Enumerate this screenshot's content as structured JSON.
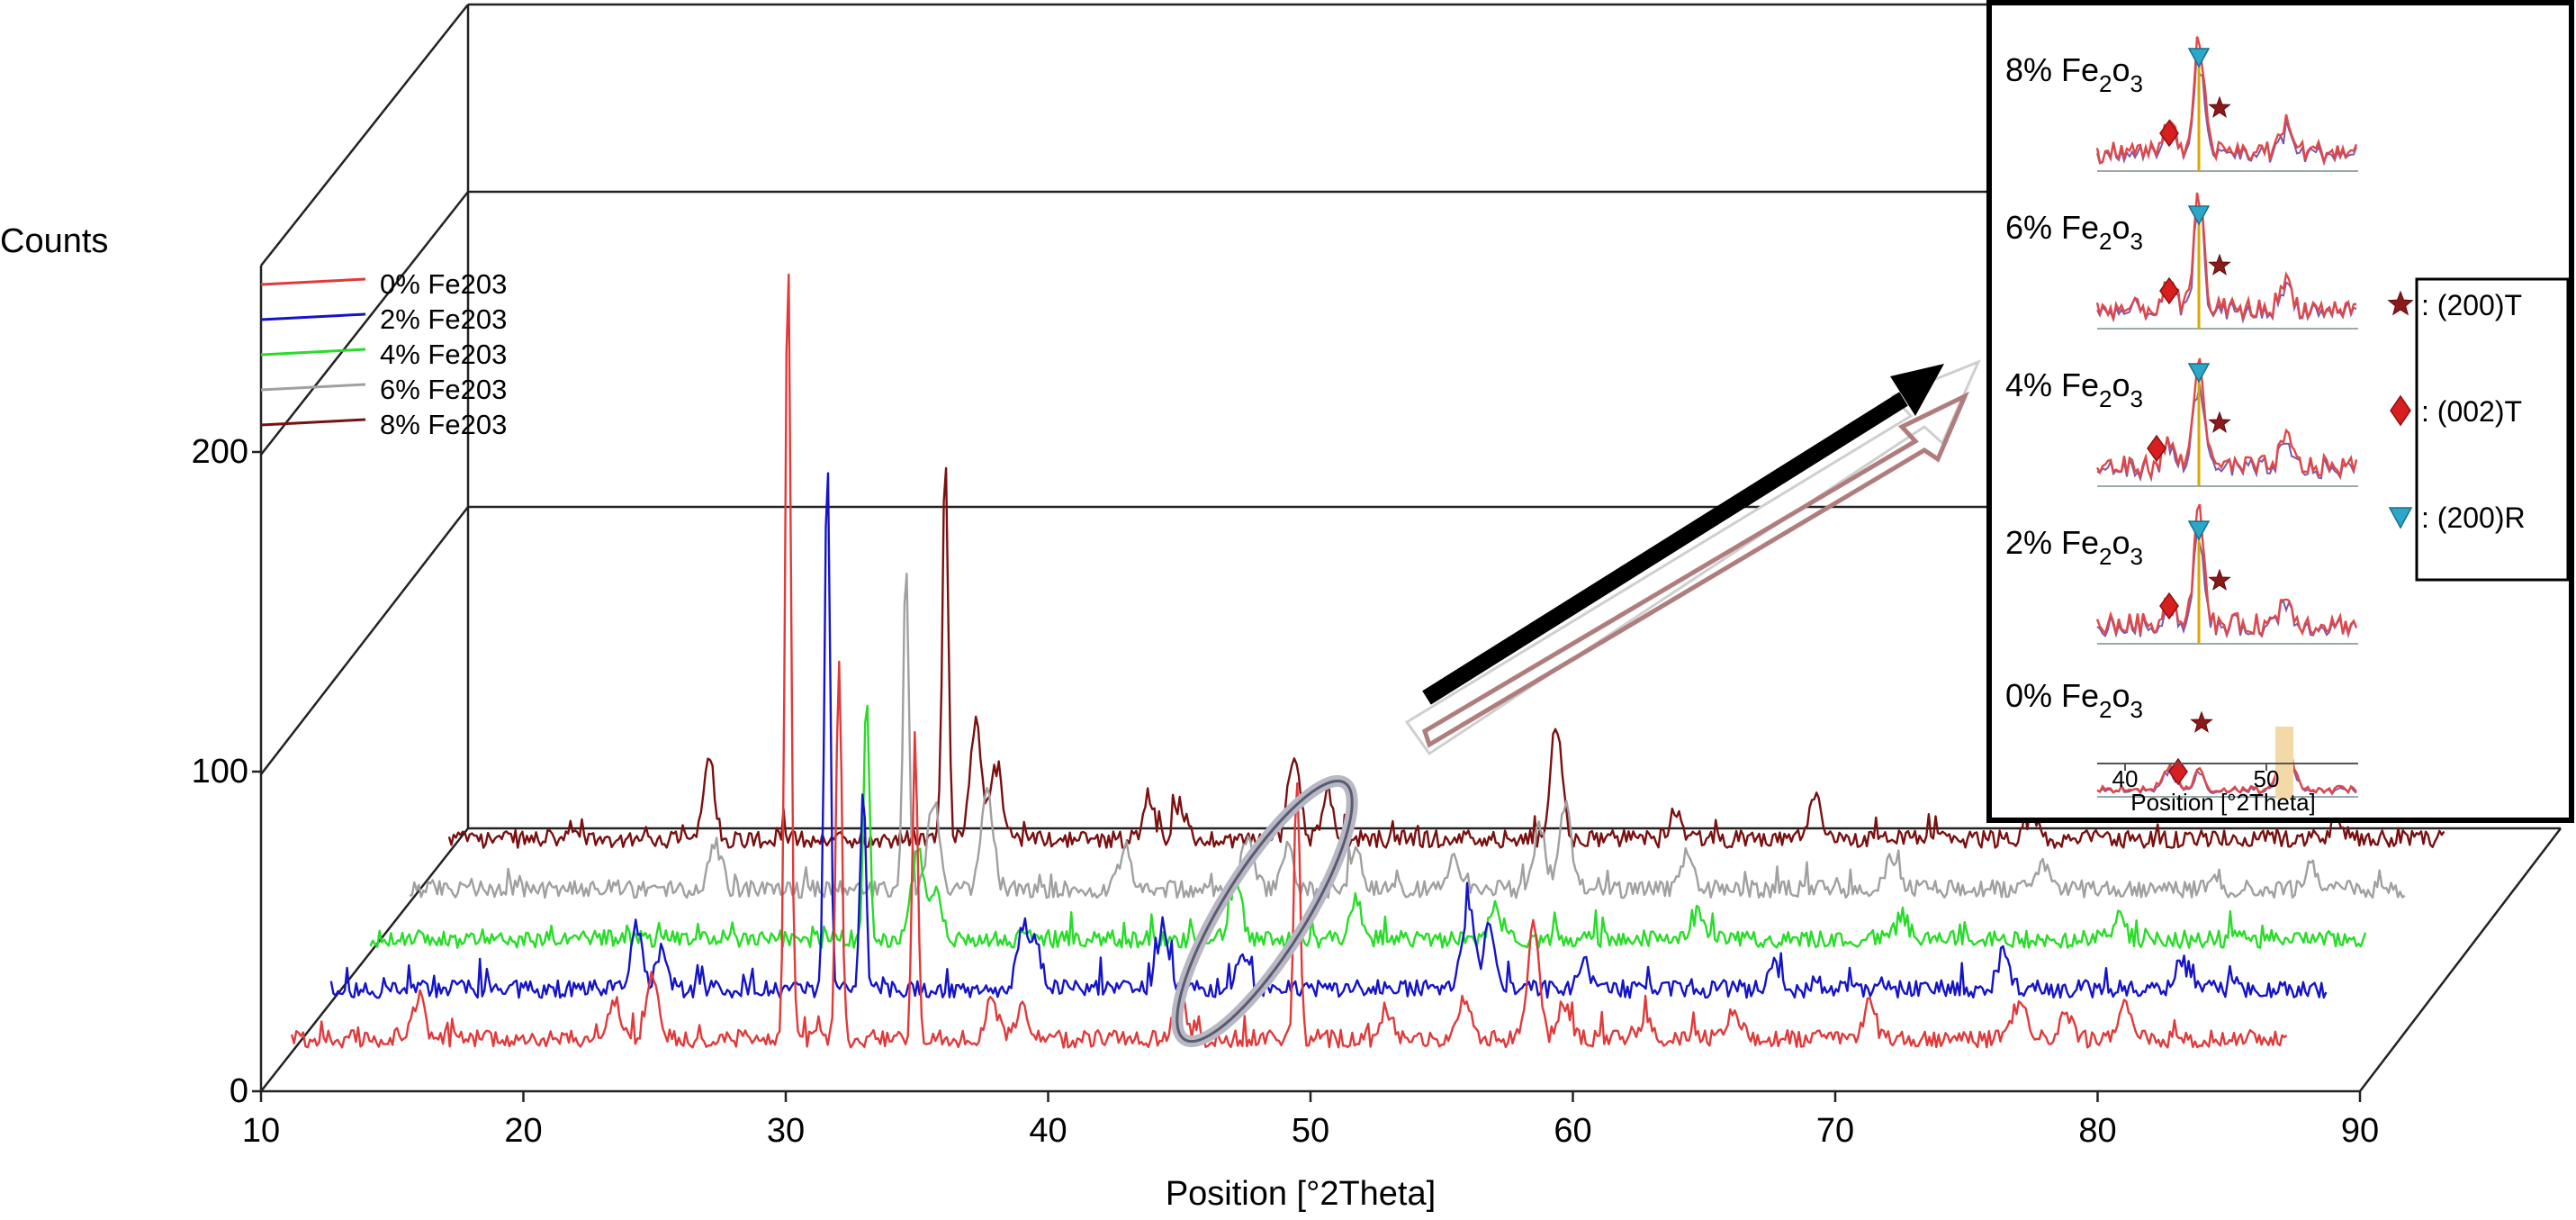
{
  "chart_data": {
    "type": "line",
    "ylabel": "Counts",
    "xlabel": "Position [°2Theta]",
    "xlim": [
      10,
      90
    ],
    "ylim": [
      0,
      260
    ],
    "x_ticks": [
      "10",
      "20",
      "30",
      "40",
      "50",
      "60",
      "70",
      "80",
      "90"
    ],
    "y_ticks": [
      "0",
      "100",
      "200"
    ],
    "grid": false,
    "legend_position": "top-left",
    "colors": {
      "0% Fe203": "#e03a3a",
      "2% Fe203": "#1414c8",
      "4% Fe203": "#28dc28",
      "6% Fe203": "#a0a0a0",
      "8% Fe203": "#7a1010"
    },
    "series": [
      {
        "name": "0% Fe203",
        "baseline": 18,
        "peaks": [
          [
            15.8,
            14
          ],
          [
            23.5,
            12
          ],
          [
            25.0,
            22
          ],
          [
            30.3,
            270
          ],
          [
            32.3,
            130
          ],
          [
            35.3,
            98
          ],
          [
            38.3,
            14
          ],
          [
            39.5,
            10
          ],
          [
            45.7,
            16
          ],
          [
            50.3,
            90
          ],
          [
            53.8,
            10
          ],
          [
            56.9,
            14
          ],
          [
            59.6,
            40
          ],
          [
            60.8,
            12
          ],
          [
            64.0,
            8
          ],
          [
            67.5,
            10
          ],
          [
            72.8,
            12
          ],
          [
            78.8,
            14
          ],
          [
            80.5,
            10
          ],
          [
            82.8,
            12
          ]
        ]
      },
      {
        "name": "2% Fe203",
        "baseline": 33,
        "peaks": [
          [
            22.8,
            22
          ],
          [
            23.8,
            14
          ],
          [
            30.3,
            180
          ],
          [
            31.7,
            70
          ],
          [
            38.0,
            20
          ],
          [
            38.5,
            14
          ],
          [
            43.5,
            22
          ],
          [
            46.6,
            12
          ],
          [
            55.5,
            28
          ],
          [
            56.3,
            18
          ],
          [
            60.0,
            10
          ],
          [
            67.5,
            8
          ],
          [
            76.5,
            12
          ],
          [
            83.5,
            10
          ]
        ]
      },
      {
        "name": "4% Fe203",
        "baseline": 44,
        "peaks": [
          [
            30.3,
            85
          ],
          [
            32.3,
            30
          ],
          [
            33.0,
            18
          ],
          [
            44.8,
            20
          ],
          [
            49.5,
            14
          ],
          [
            55.0,
            10
          ],
          [
            63.0,
            10
          ],
          [
            71.0,
            8
          ],
          [
            79.5,
            8
          ]
        ]
      },
      {
        "name": "6% Fe203",
        "baseline": 58,
        "peaks": [
          [
            22.8,
            16
          ],
          [
            30.3,
            112
          ],
          [
            31.4,
            30
          ],
          [
            33.5,
            34
          ],
          [
            38.9,
            14
          ],
          [
            43.7,
            18
          ],
          [
            45.3,
            14
          ],
          [
            48.0,
            12
          ],
          [
            51.8,
            10
          ],
          [
            55.2,
            22
          ],
          [
            56.2,
            28
          ],
          [
            61.0,
            12
          ],
          [
            69.0,
            10
          ],
          [
            75.0,
            8
          ],
          [
            85.5,
            8
          ]
        ]
      },
      {
        "name": "8% Fe203",
        "baseline": 73,
        "peaks": [
          [
            21.0,
            28
          ],
          [
            30.3,
            132
          ],
          [
            31.5,
            40
          ],
          [
            32.3,
            24
          ],
          [
            38.3,
            14
          ],
          [
            39.5,
            12
          ],
          [
            44.0,
            30
          ],
          [
            45.3,
            14
          ],
          [
            54.3,
            40
          ],
          [
            59.0,
            10
          ],
          [
            64.5,
            14
          ],
          [
            73.0,
            8
          ],
          [
            85.0,
            8
          ]
        ]
      }
    ],
    "inset": {
      "xlabel": "Position [°2Theta]",
      "x_ticks": [
        "40",
        "50"
      ],
      "panels": [
        {
          "label": "8% Fe",
          "sub1": "2",
          "mid": "o",
          "sub2": "3"
        },
        {
          "label": "6% Fe",
          "sub1": "2",
          "mid": "o",
          "sub2": "3"
        },
        {
          "label": "4% Fe",
          "sub1": "2",
          "mid": "o",
          "sub2": "3"
        },
        {
          "label": "2% Fe",
          "sub1": "2",
          "mid": "o",
          "sub2": "3"
        },
        {
          "label": "0% Fe",
          "sub1": "2",
          "mid": "o",
          "sub2": "3"
        }
      ],
      "key": [
        {
          "marker": "star-icon",
          "text": ": (200)T",
          "color": "#8b1a1a"
        },
        {
          "marker": "diamond-icon",
          "text": ": (002)T",
          "color": "#d81e1e"
        },
        {
          "marker": "triangle-down-icon",
          "text": ": (200)R",
          "color": "#2aa7c9"
        }
      ]
    }
  }
}
